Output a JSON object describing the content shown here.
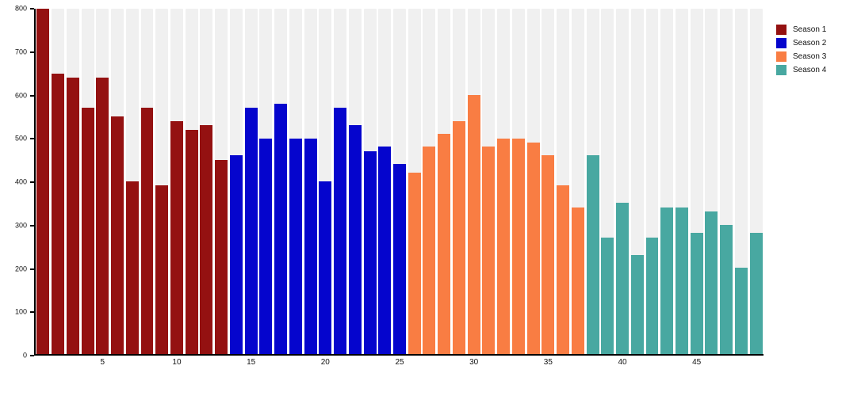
{
  "chart_data": {
    "type": "bar",
    "title": "",
    "xlabel": "",
    "ylabel": "",
    "x": [
      1,
      2,
      3,
      4,
      5,
      6,
      7,
      8,
      9,
      10,
      11,
      12,
      13,
      14,
      15,
      16,
      17,
      18,
      19,
      20,
      21,
      22,
      23,
      24,
      25,
      26,
      27,
      28,
      29,
      30,
      31,
      32,
      33,
      34,
      35,
      36,
      37,
      38,
      39,
      40,
      41,
      42,
      43,
      44,
      45,
      46,
      47,
      48,
      49
    ],
    "series": [
      {
        "name": "Season 1",
        "color": "#941111",
        "values": [
          800,
          650,
          640,
          570,
          640,
          550,
          400,
          570,
          390,
          540,
          520,
          530,
          450
        ]
      },
      {
        "name": "Season 2",
        "color": "#0505cd",
        "values": [
          460,
          570,
          500,
          580,
          500,
          500,
          400,
          570,
          530,
          470,
          480,
          440
        ]
      },
      {
        "name": "Season 3",
        "color": "#f97d43",
        "values": [
          420,
          480,
          510,
          540,
          600,
          480,
          500,
          500,
          490,
          460,
          390,
          340
        ]
      },
      {
        "name": "Season 4",
        "color": "#48a8a1",
        "values": [
          460,
          270,
          350,
          230,
          270,
          340,
          340,
          280,
          330,
          300,
          200,
          280
        ]
      }
    ],
    "ylim": [
      0,
      800
    ],
    "y_ticks": [
      0,
      100,
      200,
      300,
      400,
      500,
      600,
      700,
      800
    ],
    "x_ticks": [
      5,
      10,
      15,
      20,
      25,
      30,
      35,
      40,
      45
    ],
    "n_bars": 49,
    "grid": "off",
    "background_track_color": "#f0f0f0",
    "axis_color": "#000000",
    "legend_position": "top-right"
  }
}
